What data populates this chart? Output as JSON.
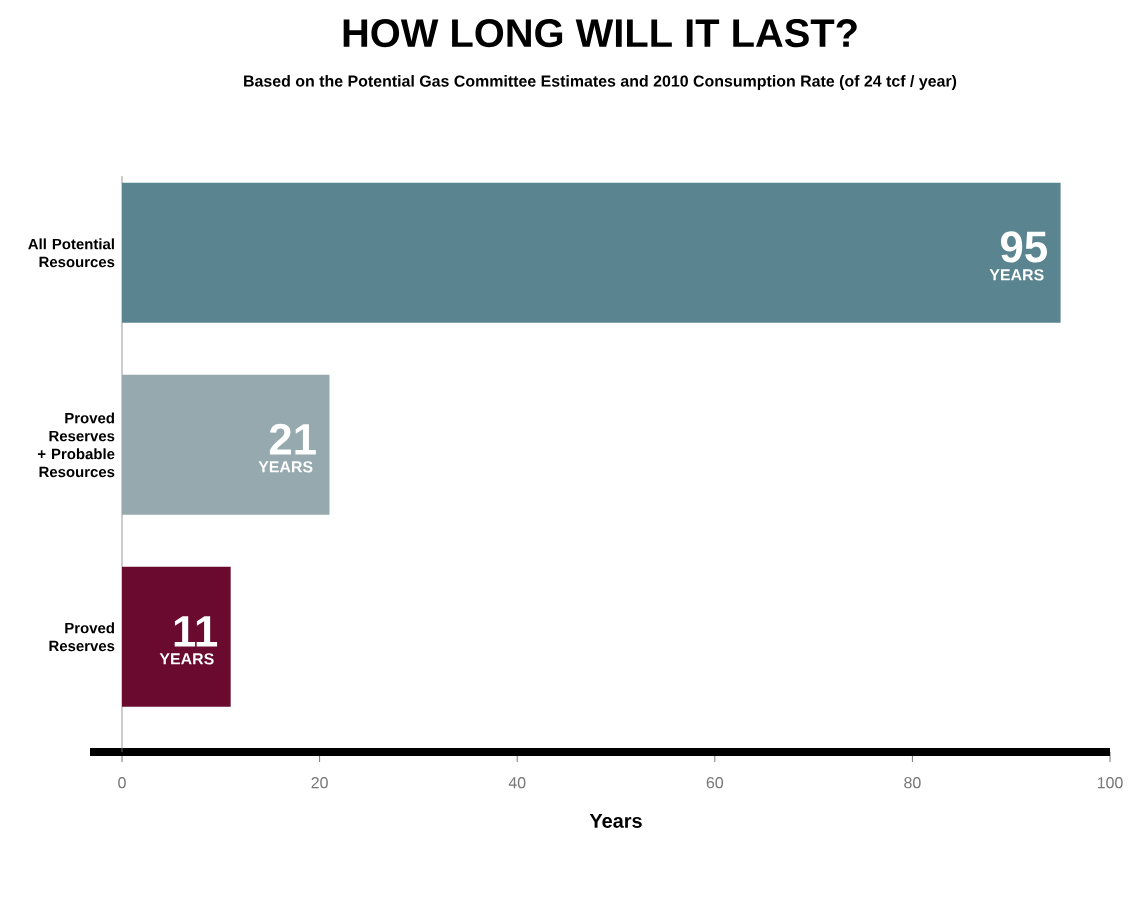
{
  "chart_data": {
    "type": "bar",
    "orientation": "horizontal",
    "title": "HOW LONG WILL IT LAST?",
    "subtitle": "Based on the Potential Gas Committee Estimates and 2010 Consumption Rate (of 24 tcf / year)",
    "categories": [
      "All Potential Resources",
      "Proved Reserves + Probable Resources",
      "Proved Reserves"
    ],
    "values": [
      95,
      21,
      11
    ],
    "colors": [
      "#5a8590",
      "#95a9ae",
      "#6a0a2e"
    ],
    "data_labels": true,
    "annotations": [
      {
        "text": "YEARS",
        "x": 95,
        "y": "All Potential Resources"
      },
      {
        "text": "YEARS",
        "x": 21,
        "y": "Proved Reserves + Probable Resources"
      },
      {
        "text": "YEARS",
        "x": 11,
        "y": "Proved Reserves"
      }
    ],
    "xlabel": "Years",
    "xlim": [
      0,
      100
    ],
    "xticks": [
      0,
      20,
      40,
      60,
      80,
      100
    ],
    "grid": false
  }
}
